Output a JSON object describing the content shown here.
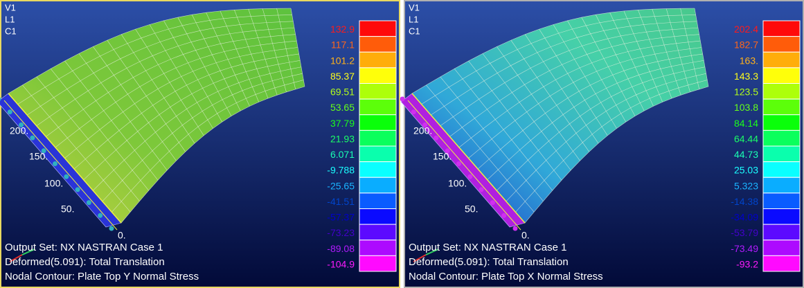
{
  "panels": [
    {
      "view": [
        "V1",
        "L1",
        "C1"
      ],
      "axis_labels": [
        "200.",
        "150.",
        "100.",
        "50.",
        "0."
      ],
      "legend_labels": [
        "132.9",
        "117.1",
        "101.2",
        "85.37",
        "69.51",
        "53.65",
        "37.79",
        "21.93",
        "6.071",
        "-9.788",
        "-25.65",
        "-41.51",
        "-57.37",
        "-73.23",
        "-89.08",
        "-104.9"
      ],
      "footer": [
        "Output Set: NX NASTRAN Case 1",
        "Deformed(5.091): Total Translation",
        "Nodal Contour: Plate Top Y Normal Stress"
      ]
    },
    {
      "view": [
        "V1",
        "L1",
        "C1"
      ],
      "axis_labels": [
        "200.",
        "150.",
        "100.",
        "50.",
        "0."
      ],
      "legend_labels": [
        "202.4",
        "182.7",
        "163.",
        "143.3",
        "123.5",
        "103.8",
        "84.14",
        "64.44",
        "44.73",
        "25.03",
        "5.323",
        "-14.38",
        "-34.09",
        "-53.79",
        "-73.49",
        "-93.2"
      ],
      "footer": [
        "Output Set: NX NASTRAN Case 1",
        "Deformed(5.091): Total Translation",
        "Nodal Contour: Plate Top X Normal Stress"
      ]
    }
  ]
}
